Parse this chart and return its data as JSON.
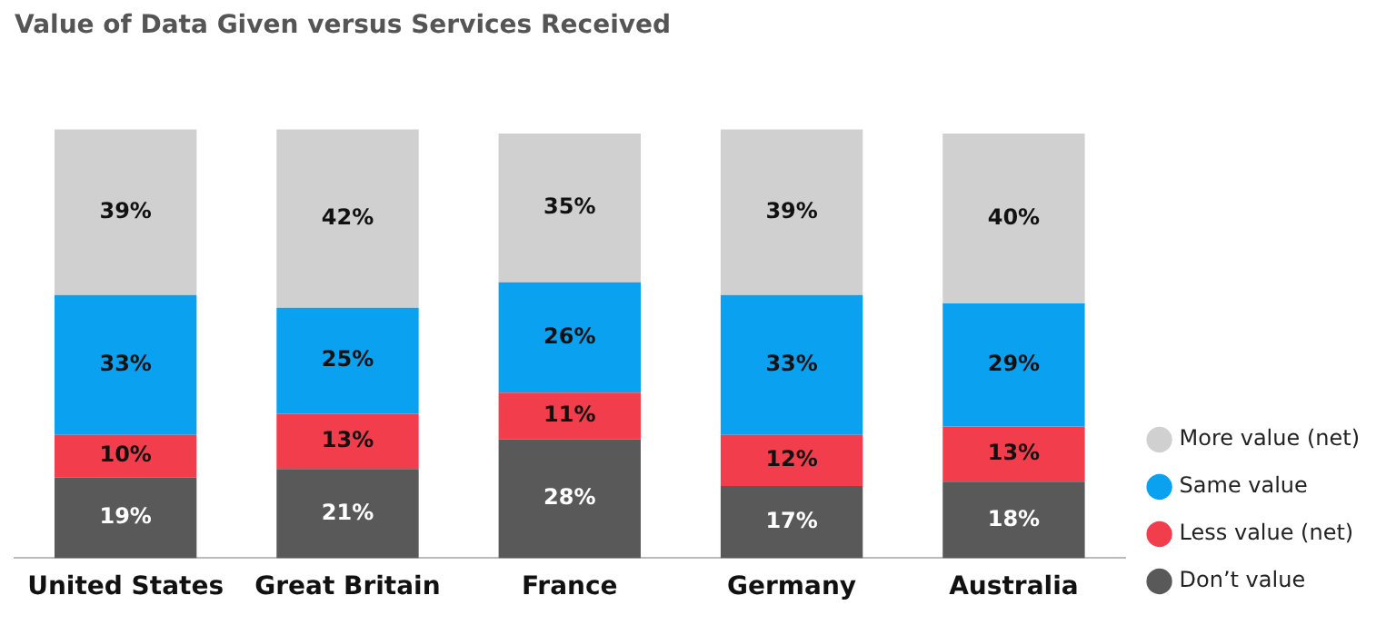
{
  "chart_data": {
    "type": "bar",
    "title": "Value of Data Given versus Services Received",
    "categories": [
      "United States",
      "Great Britain",
      "France",
      "Germany",
      "Australia"
    ],
    "stacked": true,
    "legend": "right",
    "grid": false,
    "tick_labels": "x",
    "series": [
      {
        "name": "Don’t value",
        "color": "#595959",
        "values": [
          19,
          21,
          28,
          17,
          18
        ],
        "value_labels": [
          "19%",
          "21%",
          "28%",
          "17%",
          "18%"
        ]
      },
      {
        "name": "Less value (net)",
        "color": "#f23d4c",
        "values": [
          10,
          13,
          11,
          12,
          13
        ],
        "value_labels": [
          "10%",
          "13%",
          "11%",
          "12%",
          "13%"
        ]
      },
      {
        "name": "Same value",
        "color": "#0aa2f0",
        "values": [
          33,
          25,
          26,
          33,
          29
        ],
        "value_labels": [
          "33%",
          "25%",
          "26%",
          "33%",
          "29%"
        ]
      },
      {
        "name": "More value (net)",
        "color": "#d0d0d0",
        "values": [
          39,
          42,
          35,
          39,
          40
        ],
        "value_labels": [
          "39%",
          "42%",
          "35%",
          "39%",
          "40%"
        ]
      }
    ]
  }
}
